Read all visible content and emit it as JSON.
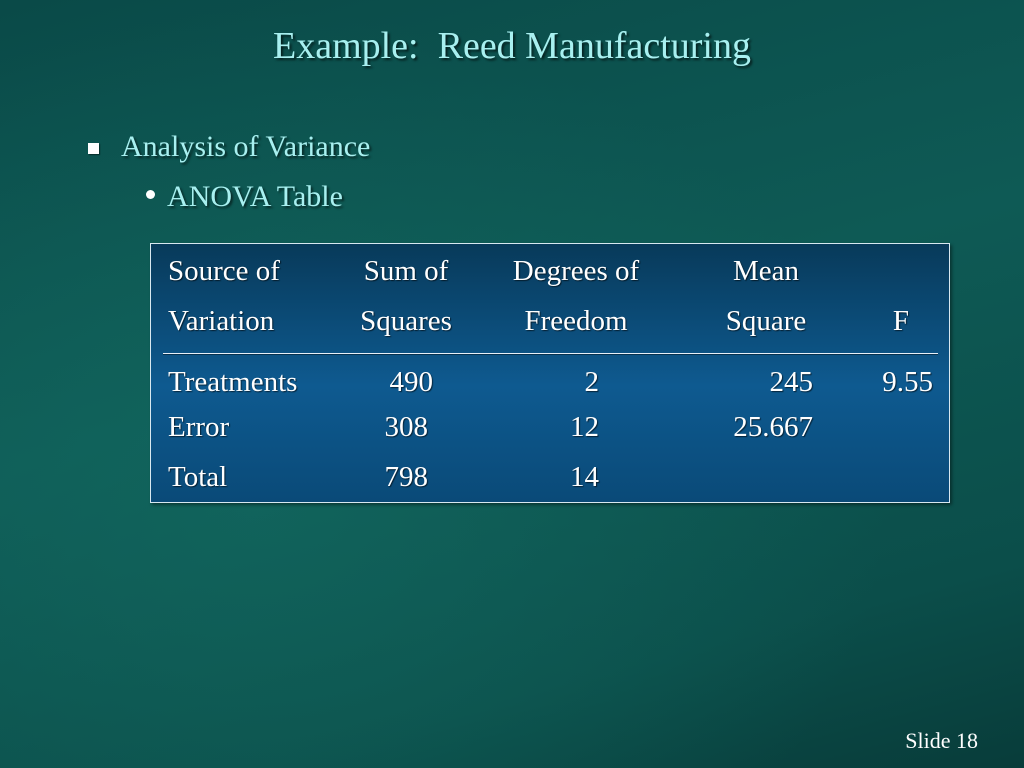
{
  "slide": {
    "title": "Example:  Reed Manufacturing",
    "bullet_level1": "Analysis of Variance",
    "bullet_level2": "ANOVA Table",
    "footer": "Slide 18"
  },
  "anova_table": {
    "header_row1": [
      "Source of",
      "Sum of",
      "Degrees of",
      "Mean",
      ""
    ],
    "header_row2": [
      "Variation",
      "Squares",
      "Freedom",
      "Square",
      "F"
    ],
    "rows": [
      [
        "Treatments",
        "490",
        "2",
        "245",
        "9.55"
      ],
      [
        "Error",
        "308",
        "12",
        "25.667",
        ""
      ],
      [
        "Total",
        "798",
        "14",
        "",
        ""
      ]
    ]
  },
  "colors": {
    "title_text": "#a8f0f0",
    "background": "#0e5a55",
    "table_background": "#0e5a90",
    "table_border": "#d8e8f0"
  }
}
